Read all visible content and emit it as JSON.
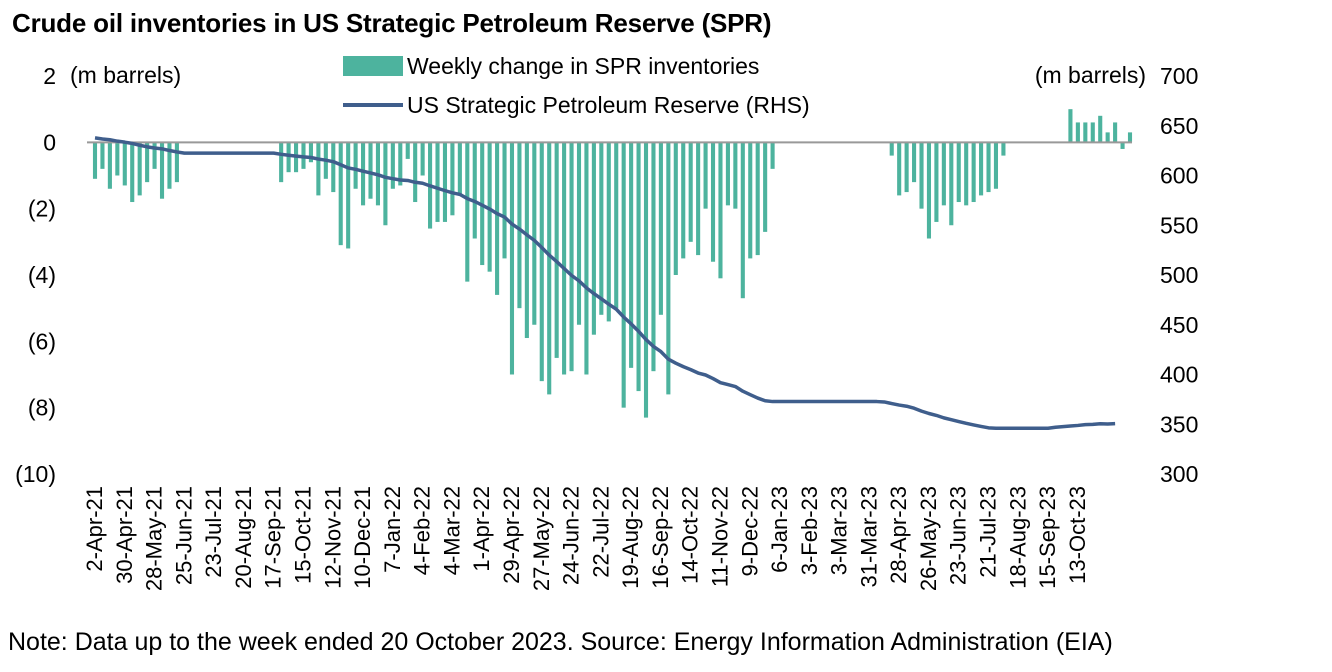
{
  "title": "Crude oil inventories in US Strategic Petroleum Reserve (SPR)",
  "note": "Note: Data up to the week ended 20 October 2023. Source: Energy Information Administration (EIA)",
  "chart_data": {
    "type": "bar+line",
    "title": "Crude oil inventories in US Strategic Petroleum Reserve (SPR)",
    "left_axis": {
      "unit_label": "(m barrels)",
      "range": [
        -10,
        2
      ],
      "ticks": [
        2,
        0,
        -2,
        -4,
        -6,
        -8,
        -10
      ],
      "tick_labels": [
        "2",
        "0",
        "(2)",
        "(4)",
        "(6)",
        "(8)",
        "(10)"
      ]
    },
    "right_axis": {
      "unit_label": "(m barrels)",
      "range": [
        300,
        700
      ],
      "ticks": [
        700,
        650,
        600,
        550,
        500,
        450,
        400,
        350,
        300
      ],
      "tick_labels": [
        "700",
        "650",
        "600",
        "550",
        "500",
        "450",
        "400",
        "350",
        "300"
      ]
    },
    "x_tick_labels": [
      "2-Apr-21",
      "30-Apr-21",
      "28-May-21",
      "25-Jun-21",
      "23-Jul-21",
      "20-Aug-21",
      "17-Sep-21",
      "15-Oct-21",
      "12-Nov-21",
      "10-Dec-21",
      "7-Jan-22",
      "4-Feb-22",
      "4-Mar-22",
      "1-Apr-22",
      "29-Apr-22",
      "27-May-22",
      "24-Jun-22",
      "22-Jul-22",
      "19-Aug-22",
      "16-Sep-22",
      "14-Oct-22",
      "11-Nov-22",
      "9-Dec-22",
      "6-Jan-23",
      "3-Feb-23",
      "3-Mar-23",
      "31-Mar-23",
      "28-Apr-23",
      "26-May-23",
      "23-Jun-23",
      "21-Jul-23",
      "18-Aug-23",
      "15-Sep-23",
      "13-Oct-23"
    ],
    "weeks_per_tick": 4,
    "legend": {
      "placement": "top-center",
      "entries": [
        "Weekly change in SPR inventories",
        "US Strategic Petroleum Reserve (RHS)"
      ]
    },
    "series": [
      {
        "name": "Weekly change in SPR inventories",
        "type": "bar",
        "axis": "left",
        "color": "#4DB39E",
        "values": [
          -1.1,
          -0.8,
          -1.4,
          -1.0,
          -1.3,
          -1.8,
          -1.6,
          -1.2,
          -0.8,
          -1.7,
          -1.4,
          -1.2,
          0,
          0,
          0,
          0,
          0,
          0,
          0,
          0,
          0,
          0,
          0,
          0,
          0,
          -1.2,
          -0.9,
          -0.9,
          -0.8,
          -0.6,
          -1.6,
          -1.1,
          -1.5,
          -3.1,
          -3.2,
          -1.4,
          -1.9,
          -1.7,
          -1.9,
          -2.5,
          -1.4,
          -1.3,
          -0.5,
          -1.8,
          -1.0,
          -2.6,
          -2.4,
          -2.4,
          -2.2,
          -1.6,
          -4.2,
          -2.9,
          -3.7,
          -3.9,
          -4.6,
          -3.5,
          -7.0,
          -5.0,
          -5.9,
          -5.5,
          -7.2,
          -7.6,
          -6.5,
          -7.0,
          -6.9,
          -5.5,
          -7.0,
          -5.8,
          -5.2,
          -5.4,
          -5.0,
          -8.0,
          -6.8,
          -7.5,
          -8.3,
          -6.9,
          -5.2,
          -7.6,
          -4.0,
          -3.5,
          -3.0,
          -3.4,
          -2.0,
          -3.6,
          -4.1,
          -1.9,
          -2.0,
          -4.7,
          -3.5,
          -3.4,
          -2.7,
          -0.8,
          0,
          0,
          0,
          0,
          0,
          0,
          0,
          0,
          0,
          0,
          0,
          0,
          0,
          0,
          0,
          -0.4,
          -1.6,
          -1.5,
          -1.2,
          -2.0,
          -2.9,
          -2.4,
          -1.9,
          -2.5,
          -1.8,
          -1.9,
          -1.8,
          -1.6,
          -1.5,
          -1.4,
          -0.4,
          0,
          0,
          0,
          0,
          0,
          0,
          0,
          0,
          1.0,
          0.6,
          0.6,
          0.6,
          0.8,
          0.3,
          0.6,
          -0.2,
          0.3
        ],
        "value_unit": "m barrels"
      },
      {
        "name": "US Strategic Petroleum Reserve (RHS)",
        "type": "line",
        "axis": "right",
        "color": "#3F5E8C",
        "values": [
          637.8,
          636.7,
          635.9,
          634.5,
          633.5,
          632.2,
          630.4,
          628.8,
          627.6,
          626.8,
          625.1,
          623.7,
          622.5,
          622.5,
          622.5,
          622.5,
          622.5,
          622.5,
          622.5,
          622.5,
          622.5,
          622.5,
          622.5,
          622.5,
          622.5,
          621.3,
          620.4,
          619.5,
          618.7,
          618.1,
          616.5,
          615.4,
          613.9,
          610.8,
          607.6,
          606.2,
          604.3,
          602.6,
          600.7,
          598.2,
          596.8,
          595.5,
          595.0,
          593.2,
          592.2,
          589.6,
          587.2,
          584.8,
          582.6,
          581.0,
          576.8,
          573.9,
          570.2,
          566.3,
          561.7,
          558.2,
          551.2,
          546.2,
          540.3,
          534.8,
          527.6,
          520.0,
          513.5,
          506.5,
          499.6,
          494.1,
          487.1,
          481.3,
          476.1,
          470.7,
          465.7,
          457.7,
          450.9,
          443.4,
          435.1,
          428.2,
          423.0,
          415.4,
          411.4,
          407.9,
          404.9,
          401.5,
          399.5,
          395.9,
          391.8,
          389.9,
          387.9,
          383.2,
          379.7,
          376.3,
          373.6,
          372.8,
          372.8,
          372.8,
          372.8,
          372.8,
          372.8,
          372.8,
          372.8,
          372.8,
          372.8,
          372.8,
          372.8,
          372.8,
          372.8,
          372.8,
          372.4,
          370.8,
          369.3,
          368.1,
          366.1,
          363.2,
          360.8,
          358.9,
          356.4,
          354.6,
          352.7,
          350.9,
          349.3,
          347.8,
          346.4,
          346.0,
          346.0,
          346.0,
          346.0,
          346.0,
          346.0,
          346.0,
          346.0,
          347.0,
          347.6,
          348.2,
          348.8,
          349.6,
          349.9,
          350.5,
          350.3,
          350.6
        ],
        "value_unit": "m barrels"
      }
    ],
    "grid": false
  }
}
